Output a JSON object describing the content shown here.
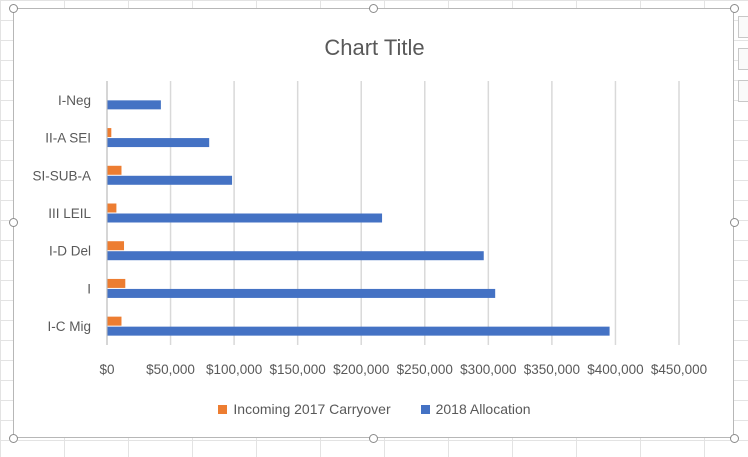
{
  "chart_data": {
    "type": "bar",
    "orientation": "horizontal",
    "title": "Chart Title",
    "categories": [
      "I-C Mig",
      "I",
      "I-D Del",
      "III LEIL",
      "SI-SUB-A",
      "II-A SEI",
      "I-Neg"
    ],
    "series": [
      {
        "name": "Incoming 2017 Carryover",
        "color": "#ED7D31",
        "values": [
          11000,
          14000,
          13000,
          7000,
          11000,
          3000,
          0
        ]
      },
      {
        "name": "2018 Allocation",
        "color": "#4472C4",
        "values": [
          395000,
          305000,
          296000,
          216000,
          98000,
          80000,
          42000
        ]
      }
    ],
    "xlim": [
      0,
      450000
    ],
    "x_ticks": [
      0,
      50000,
      100000,
      150000,
      200000,
      250000,
      300000,
      350000,
      400000,
      450000
    ],
    "x_tick_labels": [
      "$0",
      "$50,000",
      "$100,000",
      "$150,000",
      "$200,000",
      "$250,000",
      "$300,000",
      "$350,000",
      "$400,000",
      "$450,000"
    ],
    "grid": true,
    "legend_position": "bottom"
  }
}
